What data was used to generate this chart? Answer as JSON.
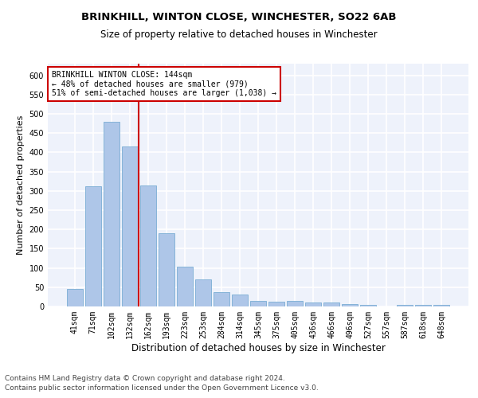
{
  "title1": "BRINKHILL, WINTON CLOSE, WINCHESTER, SO22 6AB",
  "title2": "Size of property relative to detached houses in Winchester",
  "xlabel": "Distribution of detached houses by size in Winchester",
  "ylabel": "Number of detached properties",
  "categories": [
    "41sqm",
    "71sqm",
    "102sqm",
    "132sqm",
    "162sqm",
    "193sqm",
    "223sqm",
    "253sqm",
    "284sqm",
    "314sqm",
    "345sqm",
    "375sqm",
    "405sqm",
    "436sqm",
    "466sqm",
    "496sqm",
    "527sqm",
    "557sqm",
    "587sqm",
    "618sqm",
    "648sqm"
  ],
  "values": [
    46,
    311,
    480,
    415,
    314,
    190,
    103,
    70,
    38,
    30,
    15,
    13,
    15,
    11,
    10,
    6,
    5,
    0,
    5,
    5,
    5
  ],
  "bar_color": "#aec6e8",
  "bar_edge_color": "#7aadd4",
  "vline_x": 3.5,
  "vline_color": "#cc0000",
  "annotation_text": "BRINKHILL WINTON CLOSE: 144sqm\n← 48% of detached houses are smaller (979)\n51% of semi-detached houses are larger (1,038) →",
  "annotation_box_color": "#cc0000",
  "ylim": [
    0,
    630
  ],
  "yticks": [
    0,
    50,
    100,
    150,
    200,
    250,
    300,
    350,
    400,
    450,
    500,
    550,
    600
  ],
  "footer1": "Contains HM Land Registry data © Crown copyright and database right 2024.",
  "footer2": "Contains public sector information licensed under the Open Government Licence v3.0.",
  "background_color": "#eef2fb",
  "grid_color": "#ffffff",
  "title1_fontsize": 9.5,
  "title2_fontsize": 8.5,
  "xlabel_fontsize": 8.5,
  "ylabel_fontsize": 8,
  "tick_fontsize": 7,
  "footer_fontsize": 6.5,
  "ann_fontsize": 7
}
